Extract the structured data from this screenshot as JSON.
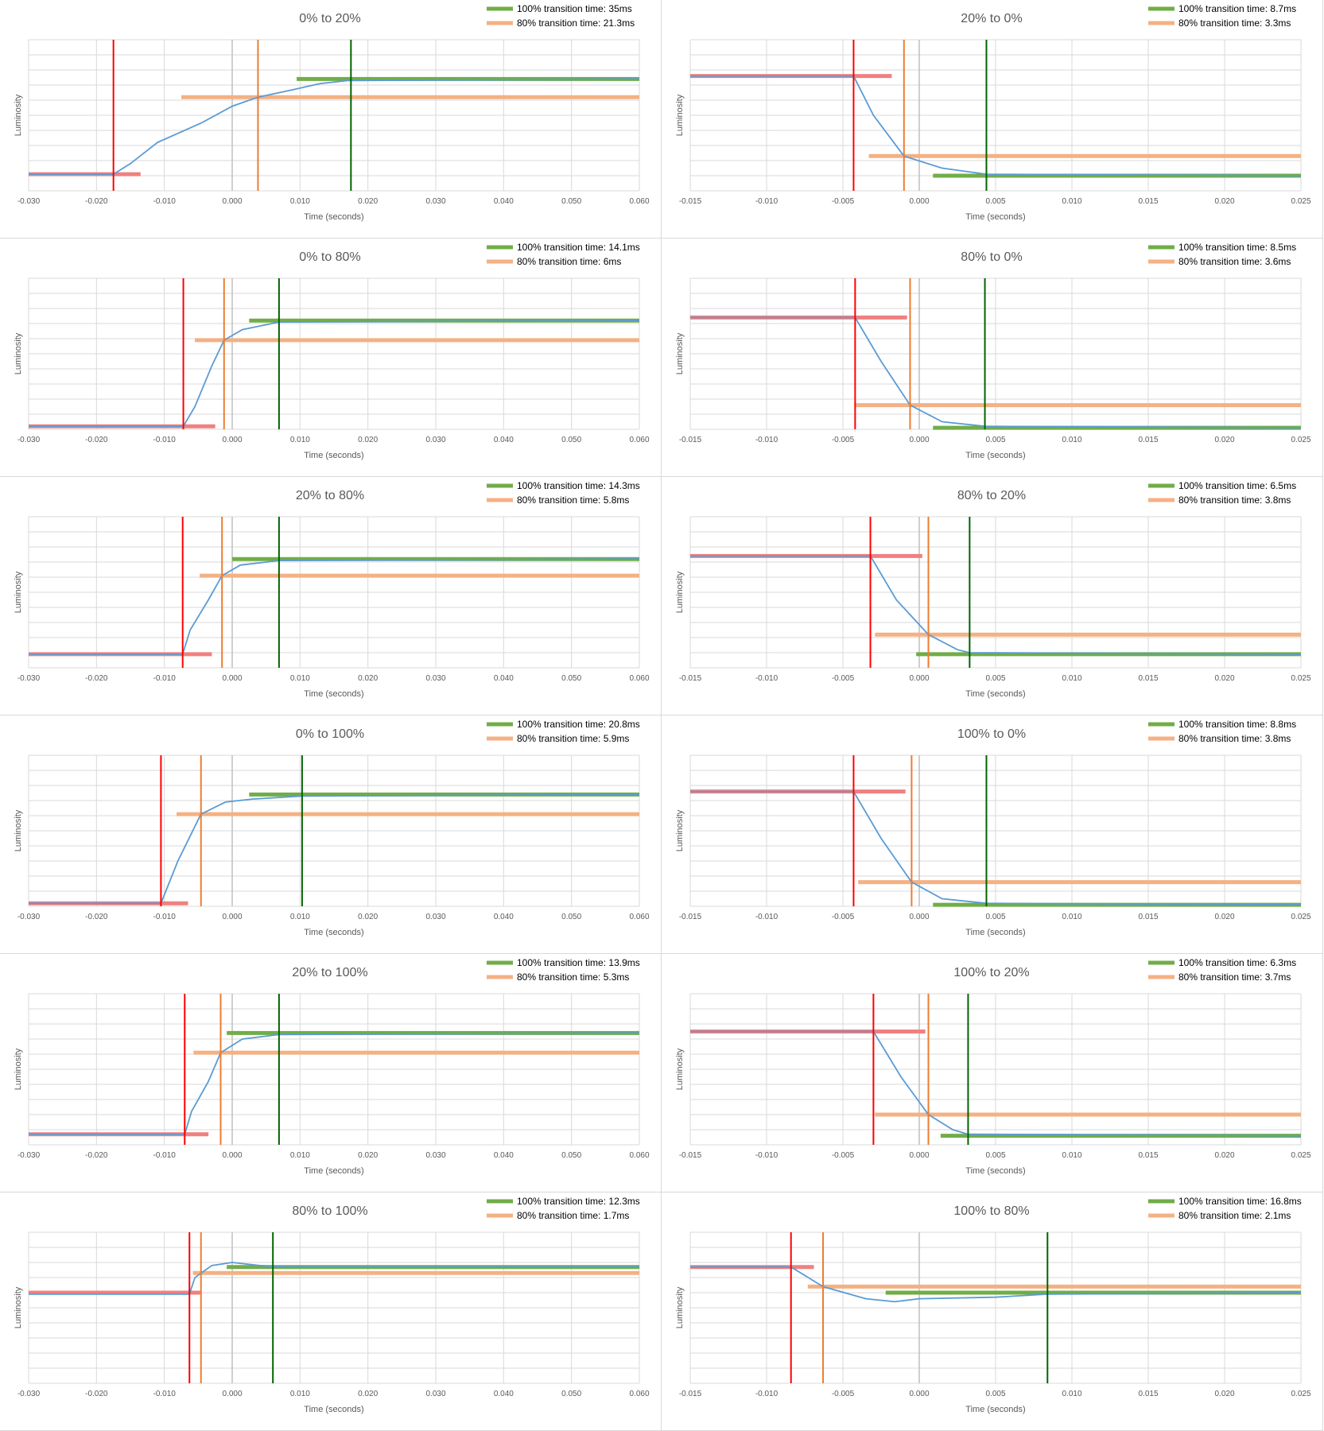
{
  "chart_data": [
    {
      "type": "line",
      "title": "0% to 20%",
      "xlabel": "Time (seconds)",
      "ylabel": "Luminosity",
      "xlim": [
        -0.03,
        0.06
      ],
      "ylim": [
        0,
        1
      ],
      "xticks": [
        "-0.030",
        "-0.020",
        "-0.010",
        "0.000",
        "0.010",
        "0.020",
        "0.030",
        "0.040",
        "0.050",
        "0.060"
      ],
      "legend": [
        "100% transition time: 35ms",
        "80% transition time: 21.3ms"
      ],
      "start": {
        "level": 0.11,
        "x0": -0.03,
        "x1": -0.0135
      },
      "end": {
        "level": 0.74,
        "x0": 0.0095,
        "x1": 0.06
      },
      "level80": {
        "level": 0.62,
        "x0": -0.0075,
        "x1": 0.06
      },
      "markers": {
        "start": -0.0175,
        "t80": 0.0038,
        "t100": 0.0175
      },
      "curve": [
        [
          -0.03,
          0.11
        ],
        [
          -0.0175,
          0.11
        ],
        [
          -0.015,
          0.18
        ],
        [
          -0.011,
          0.32
        ],
        [
          -0.0045,
          0.45
        ],
        [
          0.0,
          0.56
        ],
        [
          0.0038,
          0.62
        ],
        [
          0.009,
          0.67
        ],
        [
          0.013,
          0.71
        ],
        [
          0.017,
          0.73
        ],
        [
          0.06,
          0.74
        ]
      ]
    },
    {
      "type": "line",
      "title": "20% to 0%",
      "xlabel": "Time (seconds)",
      "ylabel": "Luminosity",
      "xlim": [
        -0.015,
        0.025
      ],
      "ylim": [
        0,
        1
      ],
      "xticks": [
        "-0.015",
        "-0.010",
        "-0.005",
        "0.000",
        "0.005",
        "0.010",
        "0.015",
        "0.020",
        "0.025"
      ],
      "legend": [
        "100% transition time: 8.7ms",
        "80% transition time: 3.3ms"
      ],
      "start": {
        "level": 0.76,
        "x0": -0.015,
        "x1": -0.0018
      },
      "end": {
        "level": 0.1,
        "x0": 0.0009,
        "x1": 0.025
      },
      "level80": {
        "level": 0.23,
        "x0": -0.0033,
        "x1": 0.025
      },
      "markers": {
        "start": -0.0043,
        "t80": -0.001,
        "t100": 0.0044
      },
      "curve": [
        [
          -0.015,
          0.76
        ],
        [
          -0.0043,
          0.76
        ],
        [
          -0.003,
          0.5
        ],
        [
          -0.001,
          0.23
        ],
        [
          0.0015,
          0.15
        ],
        [
          0.0044,
          0.11
        ],
        [
          0.025,
          0.1
        ]
      ]
    },
    {
      "type": "line",
      "title": "0% to 80%",
      "xlabel": "Time (seconds)",
      "ylabel": "Luminosity",
      "xlim": [
        -0.03,
        0.06
      ],
      "ylim": [
        0,
        1
      ],
      "xticks": [
        "-0.030",
        "-0.020",
        "-0.010",
        "0.000",
        "0.010",
        "0.020",
        "0.030",
        "0.040",
        "0.050",
        "0.060"
      ],
      "legend": [
        "100% transition time: 14.1ms",
        "80% transition time: 6ms"
      ],
      "start": {
        "level": 0.02,
        "x0": -0.03,
        "x1": -0.0025
      },
      "end": {
        "level": 0.72,
        "x0": 0.0025,
        "x1": 0.06
      },
      "level80": {
        "level": 0.59,
        "x0": -0.0055,
        "x1": 0.06
      },
      "markers": {
        "start": -0.0072,
        "t80": -0.0012,
        "t100": 0.0069
      },
      "curve": [
        [
          -0.03,
          0.02
        ],
        [
          -0.0072,
          0.02
        ],
        [
          -0.0055,
          0.15
        ],
        [
          -0.003,
          0.42
        ],
        [
          -0.0012,
          0.59
        ],
        [
          0.0015,
          0.66
        ],
        [
          0.0069,
          0.71
        ],
        [
          0.06,
          0.72
        ]
      ]
    },
    {
      "type": "line",
      "title": "80% to 0%",
      "xlabel": "Time (seconds)",
      "ylabel": "Luminosity",
      "xlim": [
        -0.015,
        0.025
      ],
      "ylim": [
        0,
        1
      ],
      "xticks": [
        "-0.015",
        "-0.010",
        "-0.005",
        "0.000",
        "0.005",
        "0.010",
        "0.015",
        "0.020",
        "0.025"
      ],
      "legend": [
        "100% transition time: 8.5ms",
        "80% transition time: 3.6ms"
      ],
      "start": {
        "level": 0.74,
        "x0": -0.015,
        "x1": -0.0008
      },
      "end": {
        "level": 0.01,
        "x0": 0.0009,
        "x1": 0.025
      },
      "level80": {
        "level": 0.16,
        "x0": -0.0042,
        "x1": 0.025
      },
      "markers": {
        "start": -0.0042,
        "t80": -0.0006,
        "t100": 0.0043
      },
      "curve": [
        [
          -0.015,
          0.74
        ],
        [
          -0.0042,
          0.74
        ],
        [
          -0.0025,
          0.45
        ],
        [
          -0.0006,
          0.16
        ],
        [
          0.0015,
          0.05
        ],
        [
          0.0043,
          0.02
        ],
        [
          0.025,
          0.01
        ]
      ]
    },
    {
      "type": "line",
      "title": "20% to 80%",
      "xlabel": "Time (seconds)",
      "ylabel": "Luminosity",
      "xlim": [
        -0.03,
        0.06
      ],
      "ylim": [
        0,
        1
      ],
      "xticks": [
        "-0.030",
        "-0.020",
        "-0.010",
        "0.000",
        "0.010",
        "0.020",
        "0.030",
        "0.040",
        "0.050",
        "0.060"
      ],
      "legend": [
        "100% transition time: 14.3ms",
        "80% transition time: 5.8ms"
      ],
      "start": {
        "level": 0.09,
        "x0": -0.03,
        "x1": -0.003
      },
      "end": {
        "level": 0.72,
        "x0": 0.0,
        "x1": 0.06
      },
      "level80": {
        "level": 0.61,
        "x0": -0.0048,
        "x1": 0.06
      },
      "markers": {
        "start": -0.0073,
        "t80": -0.0015,
        "t100": 0.0069
      },
      "curve": [
        [
          -0.03,
          0.09
        ],
        [
          -0.0073,
          0.09
        ],
        [
          -0.0062,
          0.25
        ],
        [
          -0.0035,
          0.45
        ],
        [
          -0.0015,
          0.61
        ],
        [
          0.0012,
          0.68
        ],
        [
          0.0069,
          0.71
        ],
        [
          0.06,
          0.72
        ]
      ]
    },
    {
      "type": "line",
      "title": "80% to 20%",
      "xlabel": "Time (seconds)",
      "ylabel": "Luminosity",
      "xlim": [
        -0.015,
        0.025
      ],
      "ylim": [
        0,
        1
      ],
      "xticks": [
        "-0.015",
        "-0.010",
        "-0.005",
        "0.000",
        "0.005",
        "0.010",
        "0.015",
        "0.020",
        "0.025"
      ],
      "legend": [
        "100% transition time: 6.5ms",
        "80% transition time: 3.8ms"
      ],
      "start": {
        "level": 0.74,
        "x0": -0.015,
        "x1": 0.0002
      },
      "end": {
        "level": 0.09,
        "x0": -0.0002,
        "x1": 0.025
      },
      "level80": {
        "level": 0.22,
        "x0": -0.0029,
        "x1": 0.025
      },
      "markers": {
        "start": -0.0032,
        "t80": 0.0006,
        "t100": 0.0033
      },
      "curve": [
        [
          -0.015,
          0.74
        ],
        [
          -0.0032,
          0.74
        ],
        [
          -0.0015,
          0.45
        ],
        [
          0.0006,
          0.22
        ],
        [
          0.0025,
          0.12
        ],
        [
          0.0033,
          0.1
        ],
        [
          0.025,
          0.09
        ]
      ]
    },
    {
      "type": "line",
      "title": "0% to 100%",
      "xlabel": "Time (seconds)",
      "ylabel": "Luminosity",
      "xlim": [
        -0.03,
        0.06
      ],
      "ylim": [
        0,
        1
      ],
      "xticks": [
        "-0.030",
        "-0.020",
        "-0.010",
        "0.000",
        "0.010",
        "0.020",
        "0.030",
        "0.040",
        "0.050",
        "0.060"
      ],
      "legend": [
        "100% transition time: 20.8ms",
        "80% transition time: 5.9ms"
      ],
      "start": {
        "level": 0.02,
        "x0": -0.03,
        "x1": -0.0065
      },
      "end": {
        "level": 0.74,
        "x0": 0.0025,
        "x1": 0.06
      },
      "level80": {
        "level": 0.61,
        "x0": -0.0082,
        "x1": 0.06
      },
      "markers": {
        "start": -0.0105,
        "t80": -0.0046,
        "t100": 0.0103
      },
      "curve": [
        [
          -0.03,
          0.02
        ],
        [
          -0.0105,
          0.02
        ],
        [
          -0.008,
          0.3
        ],
        [
          -0.0046,
          0.61
        ],
        [
          -0.001,
          0.69
        ],
        [
          0.003,
          0.71
        ],
        [
          0.0103,
          0.73
        ],
        [
          0.06,
          0.74
        ]
      ]
    },
    {
      "type": "line",
      "title": "100% to 0%",
      "xlabel": "Time (seconds)",
      "ylabel": "Luminosity",
      "xlim": [
        -0.015,
        0.025
      ],
      "ylim": [
        0,
        1
      ],
      "xticks": [
        "-0.015",
        "-0.010",
        "-0.005",
        "0.000",
        "0.005",
        "0.010",
        "0.015",
        "0.020",
        "0.025"
      ],
      "legend": [
        "100% transition time: 8.8ms",
        "80% transition time: 3.8ms"
      ],
      "start": {
        "level": 0.76,
        "x0": -0.015,
        "x1": -0.0009
      },
      "end": {
        "level": 0.01,
        "x0": 0.0009,
        "x1": 0.025
      },
      "level80": {
        "level": 0.16,
        "x0": -0.004,
        "x1": 0.025
      },
      "markers": {
        "start": -0.0043,
        "t80": -0.0005,
        "t100": 0.0044
      },
      "curve": [
        [
          -0.015,
          0.76
        ],
        [
          -0.0043,
          0.76
        ],
        [
          -0.0025,
          0.45
        ],
        [
          -0.0005,
          0.16
        ],
        [
          0.0015,
          0.05
        ],
        [
          0.0044,
          0.02
        ],
        [
          0.025,
          0.01
        ]
      ]
    },
    {
      "type": "line",
      "title": "20% to 100%",
      "xlabel": "Time (seconds)",
      "ylabel": "Luminosity",
      "xlim": [
        -0.03,
        0.06
      ],
      "ylim": [
        0,
        1
      ],
      "xticks": [
        "-0.030",
        "-0.020",
        "-0.010",
        "0.000",
        "0.010",
        "0.020",
        "0.030",
        "0.040",
        "0.050",
        "0.060"
      ],
      "legend": [
        "100% transition time: 13.9ms",
        "80% transition time: 5.3ms"
      ],
      "start": {
        "level": 0.07,
        "x0": -0.03,
        "x1": -0.0035
      },
      "end": {
        "level": 0.74,
        "x0": -0.0008,
        "x1": 0.06
      },
      "level80": {
        "level": 0.61,
        "x0": -0.0057,
        "x1": 0.06
      },
      "markers": {
        "start": -0.007,
        "t80": -0.0017,
        "t100": 0.0069
      },
      "curve": [
        [
          -0.03,
          0.07
        ],
        [
          -0.007,
          0.07
        ],
        [
          -0.006,
          0.22
        ],
        [
          -0.0035,
          0.42
        ],
        [
          -0.0017,
          0.61
        ],
        [
          0.0015,
          0.7
        ],
        [
          0.0069,
          0.73
        ],
        [
          0.06,
          0.74
        ]
      ]
    },
    {
      "type": "line",
      "title": "100% to 20%",
      "xlabel": "Time (seconds)",
      "ylabel": "Luminosity",
      "xlim": [
        -0.015,
        0.025
      ],
      "ylim": [
        0,
        1
      ],
      "xticks": [
        "-0.015",
        "-0.010",
        "-0.005",
        "0.000",
        "0.005",
        "0.010",
        "0.015",
        "0.020",
        "0.025"
      ],
      "legend": [
        "100% transition time: 6.3ms",
        "80% transition time: 3.7ms"
      ],
      "start": {
        "level": 0.75,
        "x0": -0.015,
        "x1": 0.0004
      },
      "end": {
        "level": 0.06,
        "x0": 0.0014,
        "x1": 0.025
      },
      "level80": {
        "level": 0.2,
        "x0": -0.0029,
        "x1": 0.025
      },
      "markers": {
        "start": -0.003,
        "t80": 0.0006,
        "t100": 0.0032
      },
      "curve": [
        [
          -0.015,
          0.75
        ],
        [
          -0.003,
          0.75
        ],
        [
          -0.0012,
          0.45
        ],
        [
          0.0006,
          0.2
        ],
        [
          0.0022,
          0.1
        ],
        [
          0.0032,
          0.07
        ],
        [
          0.025,
          0.06
        ]
      ]
    },
    {
      "type": "line",
      "title": "80% to 100%",
      "xlabel": "Time (seconds)",
      "ylabel": "Luminosity",
      "xlim": [
        -0.03,
        0.06
      ],
      "ylim": [
        0,
        1
      ],
      "xticks": [
        "-0.030",
        "-0.020",
        "-0.010",
        "0.000",
        "0.010",
        "0.020",
        "0.030",
        "0.040",
        "0.050",
        "0.060"
      ],
      "legend": [
        "100% transition time: 12.3ms",
        "80% transition time: 1.7ms"
      ],
      "start": {
        "level": 0.6,
        "x0": -0.03,
        "x1": -0.0047
      },
      "end": {
        "level": 0.77,
        "x0": -0.0008,
        "x1": 0.06
      },
      "level80": {
        "level": 0.73,
        "x0": -0.0058,
        "x1": 0.06
      },
      "markers": {
        "start": -0.0063,
        "t80": -0.0046,
        "t100": 0.006
      },
      "curve": [
        [
          -0.03,
          0.59
        ],
        [
          -0.0063,
          0.59
        ],
        [
          -0.0055,
          0.7
        ],
        [
          -0.003,
          0.78
        ],
        [
          0.0,
          0.8
        ],
        [
          0.004,
          0.78
        ],
        [
          0.008,
          0.77
        ],
        [
          0.06,
          0.77
        ]
      ]
    },
    {
      "type": "line",
      "title": "100% to 80%",
      "xlabel": "Time (seconds)",
      "ylabel": "Luminosity",
      "xlim": [
        -0.015,
        0.025
      ],
      "ylim": [
        0,
        1
      ],
      "xticks": [
        "-0.015",
        "-0.010",
        "-0.005",
        "0.000",
        "0.005",
        "0.010",
        "0.015",
        "0.020",
        "0.025"
      ],
      "legend": [
        "100% transition time: 16.8ms",
        "80% transition time: 2.1ms"
      ],
      "start": {
        "level": 0.77,
        "x0": -0.015,
        "x1": -0.0069
      },
      "end": {
        "level": 0.6,
        "x0": -0.0022,
        "x1": 0.025
      },
      "level80": {
        "level": 0.64,
        "x0": -0.0073,
        "x1": 0.025
      },
      "markers": {
        "start": -0.0084,
        "t80": -0.0063,
        "t100": 0.0084
      },
      "curve": [
        [
          -0.015,
          0.77
        ],
        [
          -0.0084,
          0.77
        ],
        [
          -0.0063,
          0.64
        ],
        [
          -0.0035,
          0.56
        ],
        [
          -0.0016,
          0.54
        ],
        [
          0.0,
          0.56
        ],
        [
          0.005,
          0.57
        ],
        [
          0.0084,
          0.59
        ],
        [
          0.025,
          0.6
        ]
      ]
    }
  ],
  "colors": {
    "curve": "#5b9bd5",
    "start_marker": "#ff0000",
    "t80_marker": "#ed7d31",
    "t100_marker": "#006400",
    "start_level": "#f08080",
    "level80": "#f4b183",
    "level100": "#70ad47",
    "grid": "#d9d9d9",
    "axis_text": "#595959"
  }
}
